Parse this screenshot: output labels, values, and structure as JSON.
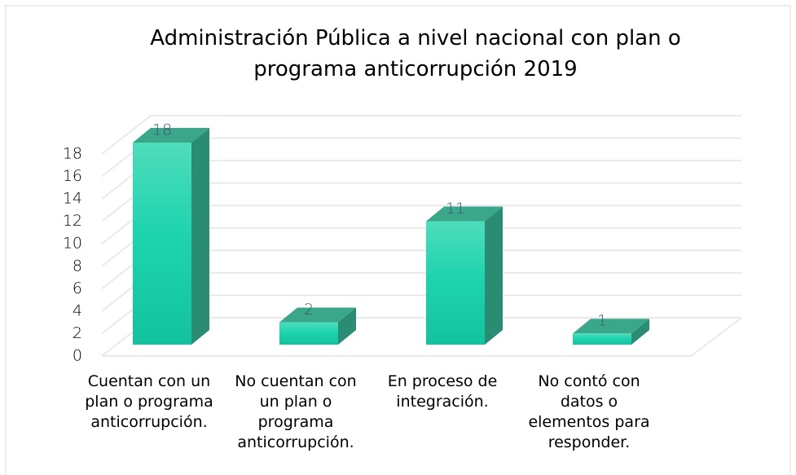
{
  "chart_data": {
    "type": "bar3d",
    "title": "Administración Pública a nivel nacional con plan o programa anticorrupción 2019",
    "categories": [
      "Cuentan con un plan o programa anticorrupción.",
      "No cuentan con un plan o programa anticorrupción.",
      "En proceso de integración.",
      "No contó con datos o elementos para responder."
    ],
    "values": [
      18,
      2,
      11,
      1
    ],
    "color": "#1fcca8",
    "ylim": [
      0,
      18
    ],
    "yticks": [
      0,
      2,
      4,
      6,
      8,
      10,
      12,
      14,
      16,
      18
    ],
    "grid": true
  }
}
